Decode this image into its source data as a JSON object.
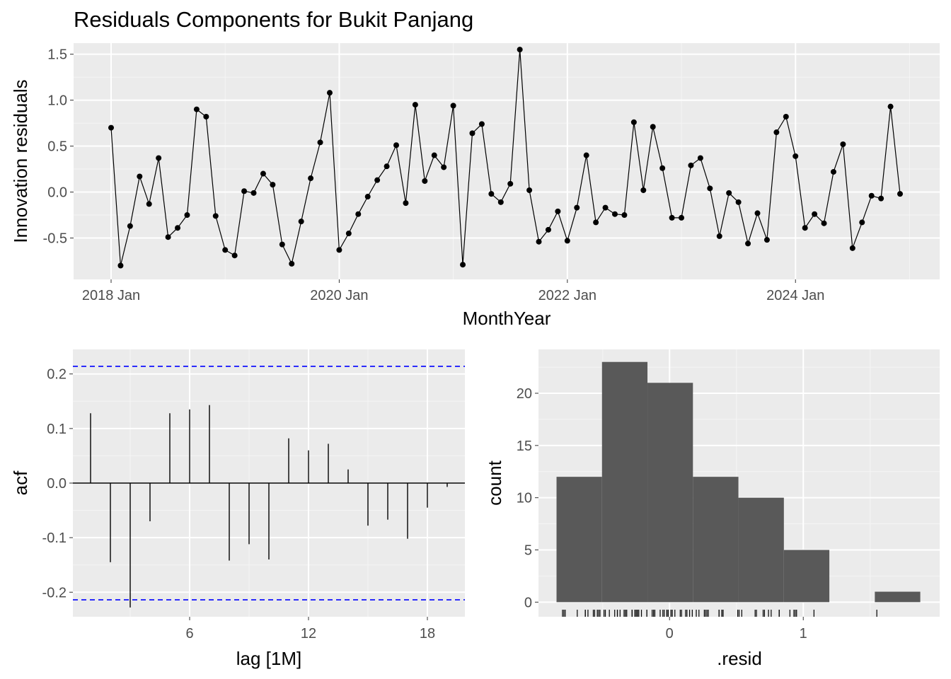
{
  "title": "Residuals Components for Bukit Panjang",
  "colors": {
    "panel": "#ebebeb",
    "grid_major": "#ffffff",
    "grid_minor": "#f5f5f5",
    "line": "#000000",
    "bar": "#595959",
    "ci": "#0000ff",
    "tick_text": "#4d4d4d"
  },
  "chart_data": [
    {
      "type": "line",
      "name": "residuals_time_series",
      "xlabel": "MonthYear",
      "ylabel": "Innovation residuals",
      "x_ticks": [
        "2018 Jan",
        "2020 Jan",
        "2022 Jan",
        "2024 Jan"
      ],
      "y_ticks": [
        "-0.5",
        "0.0",
        "0.5",
        "1.0",
        "1.5"
      ],
      "x_start": "2018 Jan",
      "x_frequency": "monthly",
      "ylim": [
        -0.95,
        1.62
      ],
      "grid": true,
      "values": [
        0.7,
        -0.8,
        -0.37,
        0.17,
        -0.13,
        0.37,
        -0.49,
        -0.39,
        -0.25,
        0.9,
        0.82,
        -0.26,
        -0.63,
        -0.69,
        0.01,
        -0.01,
        0.2,
        0.08,
        -0.57,
        -0.78,
        -0.32,
        0.15,
        0.54,
        1.08,
        -0.63,
        -0.45,
        -0.24,
        -0.05,
        0.13,
        0.28,
        0.51,
        -0.12,
        0.95,
        0.12,
        0.4,
        0.27,
        0.94,
        -0.79,
        0.64,
        0.74,
        -0.02,
        -0.11,
        0.09,
        1.55,
        0.02,
        -0.54,
        -0.41,
        -0.21,
        -0.53,
        -0.17,
        0.4,
        -0.33,
        -0.17,
        -0.24,
        -0.25,
        0.76,
        0.02,
        0.71,
        0.26,
        -0.28,
        -0.28,
        0.29,
        0.37,
        0.04,
        -0.48,
        -0.01,
        -0.11,
        -0.56,
        -0.23,
        -0.52,
        0.65,
        0.82,
        0.39,
        -0.39,
        -0.24,
        -0.34,
        0.22,
        0.52,
        -0.61,
        -0.33,
        -0.04,
        -0.07,
        0.93,
        -0.02
      ]
    },
    {
      "type": "bar",
      "name": "acf",
      "xlabel": "lag [1M]",
      "ylabel": "acf",
      "x_ticks": [
        "6",
        "12",
        "18"
      ],
      "y_ticks": [
        "-0.2",
        "-0.1",
        "0.0",
        "0.1",
        "0.2"
      ],
      "lags": [
        1,
        2,
        3,
        4,
        5,
        6,
        7,
        8,
        9,
        10,
        11,
        12,
        13,
        14,
        15,
        16,
        17,
        18,
        19
      ],
      "values": [
        0.128,
        -0.145,
        -0.228,
        -0.07,
        0.128,
        0.135,
        0.143,
        -0.142,
        -0.112,
        -0.14,
        0.082,
        0.06,
        0.072,
        0.025,
        -0.078,
        -0.067,
        -0.102,
        -0.045,
        -0.007
      ],
      "ci_bounds": [
        0.214,
        -0.214
      ],
      "ylim": [
        -0.245,
        0.245
      ],
      "xlim": [
        0,
        20
      ]
    },
    {
      "type": "histogram",
      "name": "residual_histogram",
      "xlabel": ".resid",
      "ylabel": "count",
      "x_ticks": [
        "0",
        "1"
      ],
      "y_ticks": [
        "0",
        "5",
        "10",
        "15",
        "20"
      ],
      "bin_edges": [
        -0.845,
        -0.505,
        -0.165,
        0.175,
        0.515,
        0.855,
        1.195,
        1.535,
        1.875
      ],
      "counts": [
        12,
        23,
        21,
        12,
        10,
        5,
        0,
        1
      ],
      "ylim": [
        -1.4,
        24.2
      ],
      "xlim": [
        -0.98,
        2.02
      ],
      "rug": true
    }
  ]
}
